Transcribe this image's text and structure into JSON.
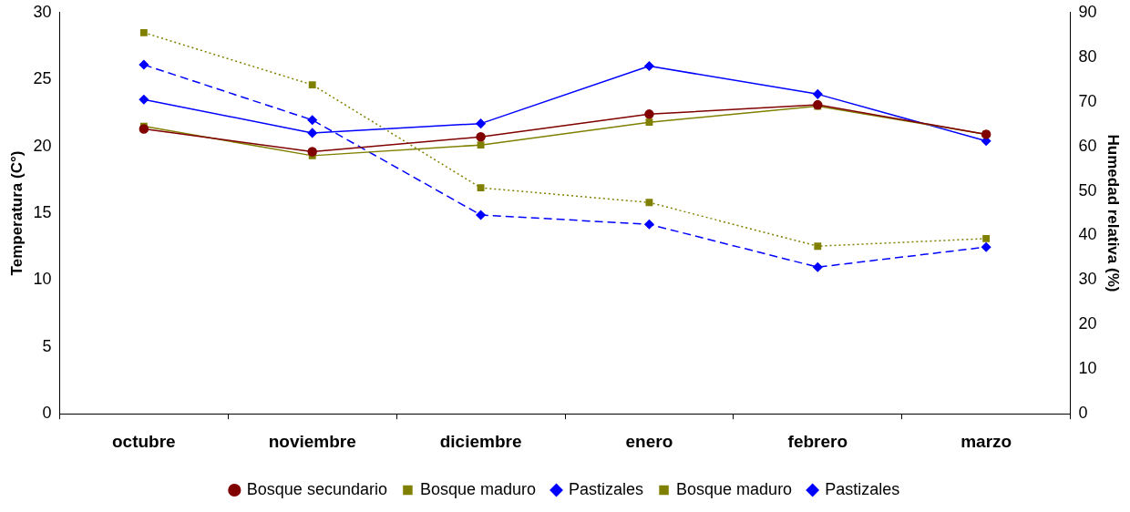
{
  "chart_data": {
    "type": "line",
    "ylabel": "Temperatura (C°)",
    "y2label": "Humedad relativa (%)",
    "categories": [
      "octubre",
      "noviembre",
      "diciembre",
      "enero",
      "febrero",
      "marzo"
    ],
    "series": [
      {
        "name": "Bosque secundario",
        "color": "#800000",
        "marker": "circle",
        "line_style": "solid",
        "values": [
          21.3,
          19.6,
          20.7,
          22.4,
          23.1,
          20.9
        ]
      },
      {
        "name": "Bosque maduro",
        "color": "#808000",
        "marker": "square",
        "line_style": "solid",
        "values": [
          21.5,
          19.3,
          20.1,
          21.8,
          23.0,
          20.9
        ]
      },
      {
        "name": "Pastizales",
        "color": "#0000ff",
        "marker": "diamond",
        "line_style": "solid",
        "values": [
          23.5,
          21.0,
          21.7,
          26.0,
          23.9,
          20.4
        ]
      },
      {
        "name": "Bosque maduro",
        "color": "#808000",
        "marker": "square",
        "line_style": "dotted",
        "axis": "y2",
        "values": [
          85.5,
          73.8,
          50.7,
          47.4,
          37.6,
          39.3
        ]
      },
      {
        "name": "Pastizales",
        "color": "#0000ff",
        "marker": "diamond",
        "line_style": "dashed",
        "axis": "y2",
        "values": [
          78.3,
          65.9,
          44.6,
          42.5,
          32.9,
          37.4
        ]
      }
    ],
    "ylim": [
      0,
      30
    ],
    "yticks": [
      0,
      5,
      10,
      15,
      20,
      25,
      30
    ],
    "y2lim": [
      0,
      90
    ],
    "y2ticks": [
      0,
      10,
      20,
      30,
      40,
      50,
      60,
      70,
      80,
      90
    ],
    "grid": false,
    "legend": "bottom"
  }
}
